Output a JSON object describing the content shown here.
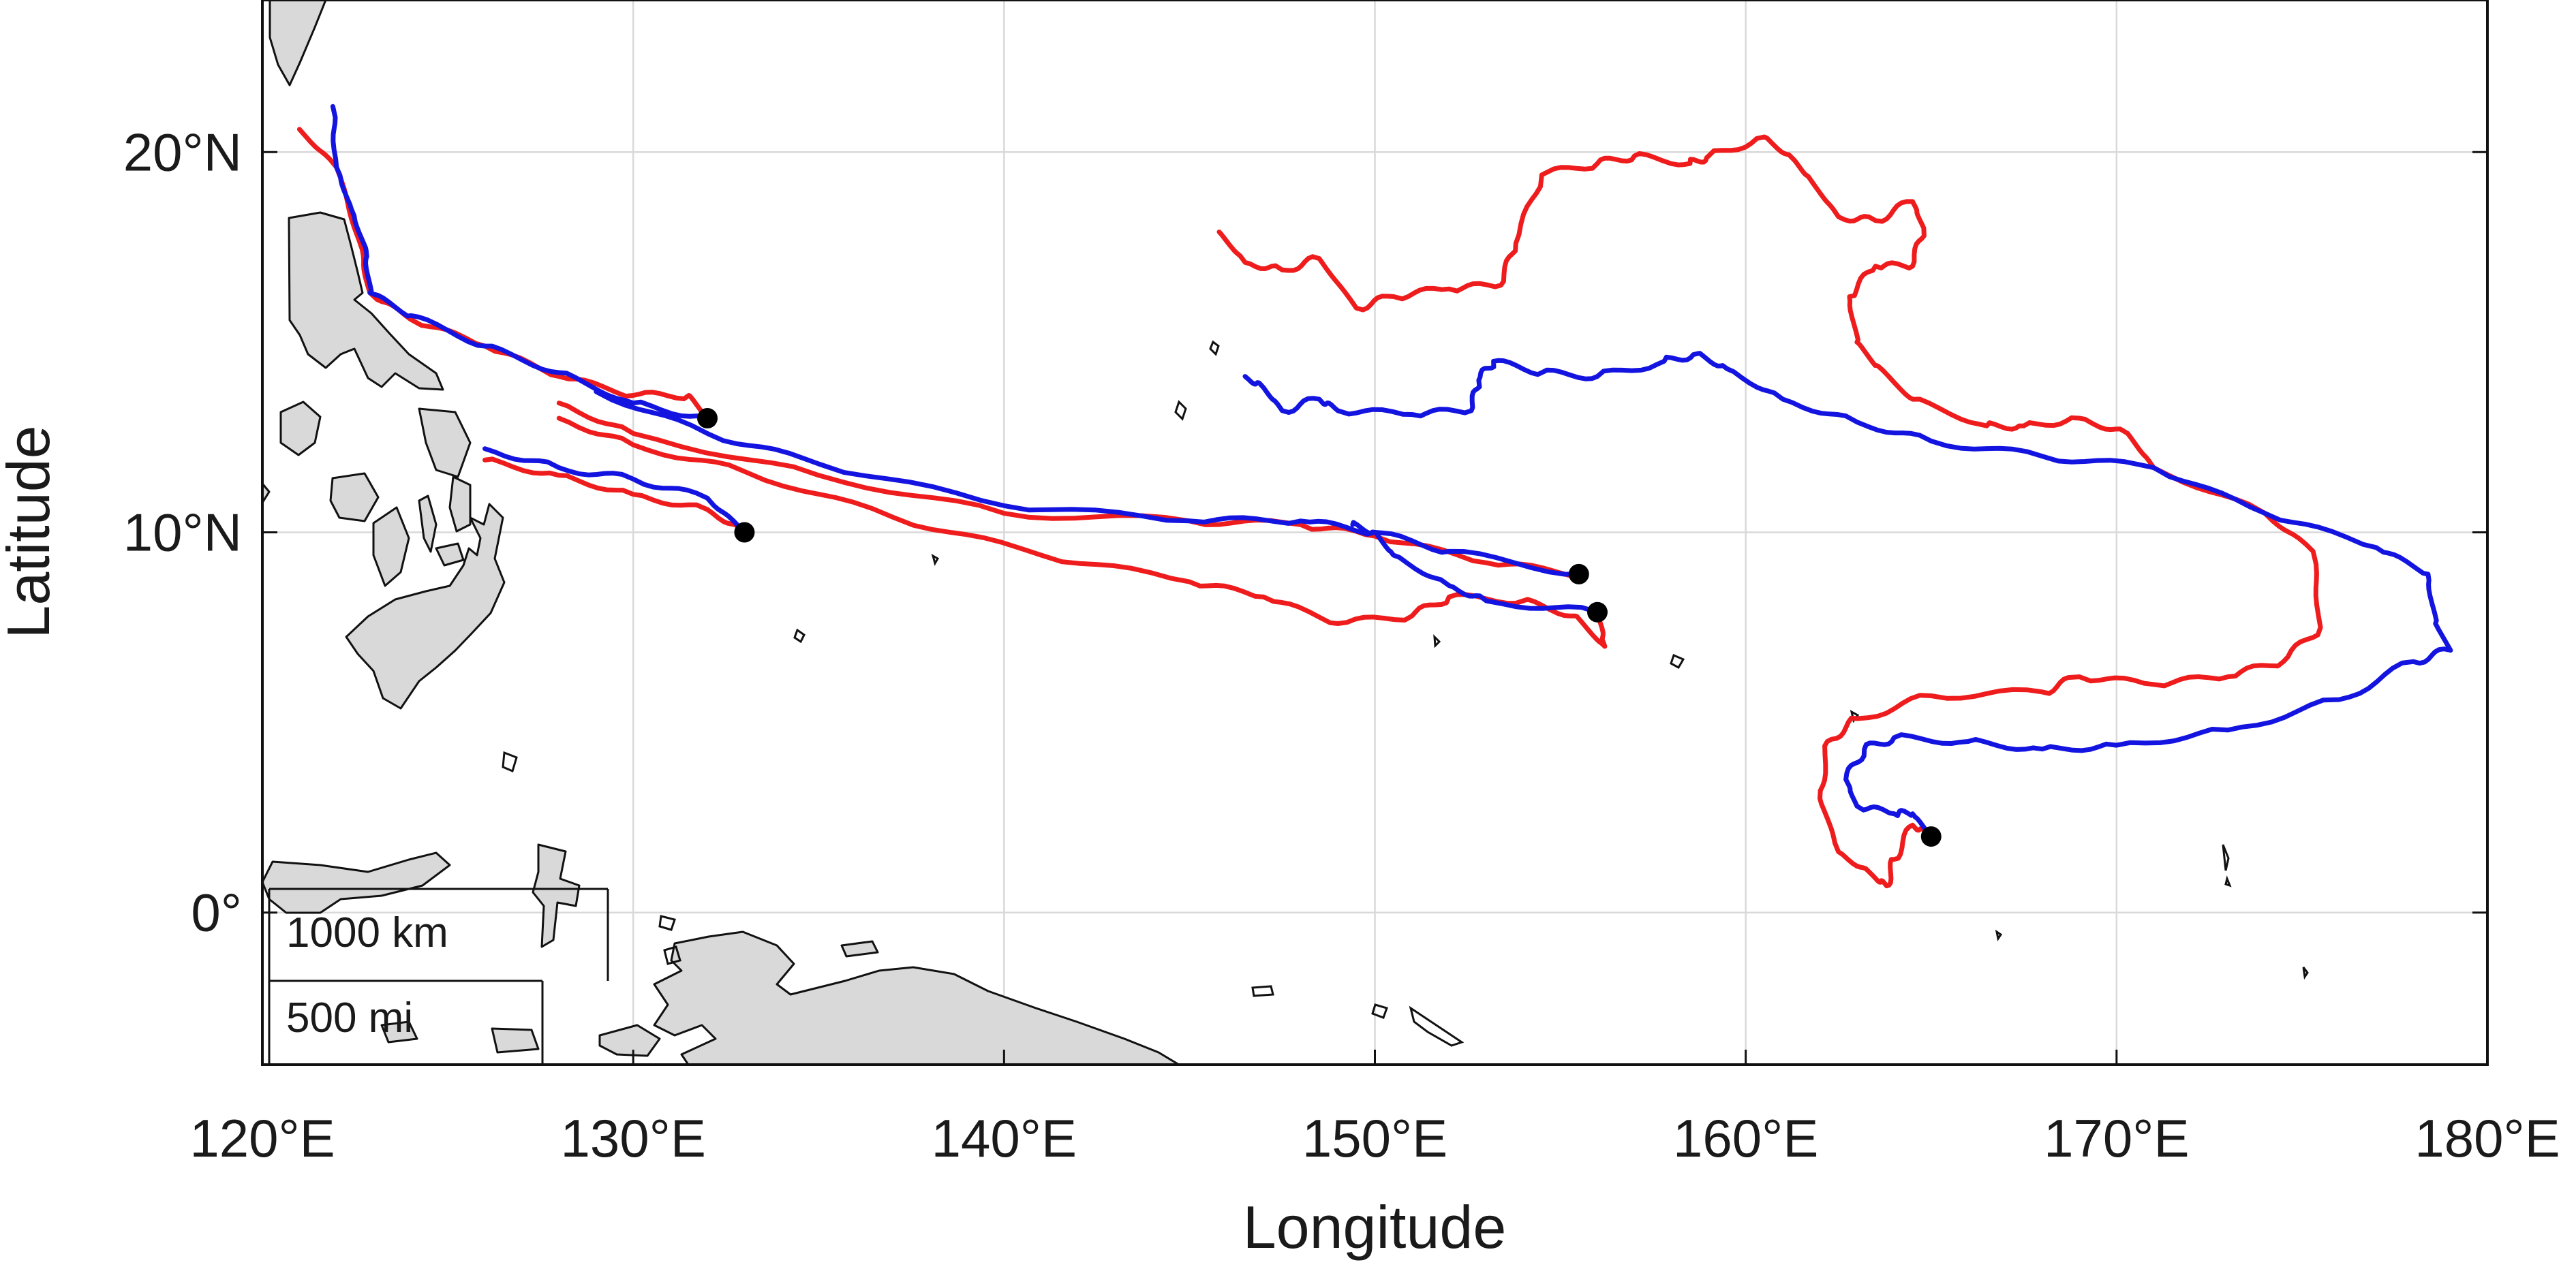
{
  "map": {
    "lon_range": [
      120,
      180
    ],
    "lat_range": [
      -4,
      24
    ],
    "x_label": "Longitude",
    "y_label": "Latitude",
    "x_ticks": [
      {
        "value": 120,
        "label": "120°E"
      },
      {
        "value": 130,
        "label": "130°E"
      },
      {
        "value": 140,
        "label": "140°E"
      },
      {
        "value": 150,
        "label": "150°E"
      },
      {
        "value": 160,
        "label": "160°E"
      },
      {
        "value": 170,
        "label": "170°E"
      },
      {
        "value": 180,
        "label": "180°E"
      }
    ],
    "y_ticks": [
      {
        "value": 0,
        "label": "0°"
      },
      {
        "value": 10,
        "label": "10°N"
      },
      {
        "value": 20,
        "label": "20°N"
      }
    ],
    "grid": true,
    "land_color": "#d9d9d9",
    "scale_bar": {
      "km_label": "1000 km",
      "mi_label": "500 mi"
    }
  },
  "chart_data": {
    "type": "line",
    "xlabel": "Longitude",
    "ylabel": "Latitude",
    "xlim": [
      120,
      180
    ],
    "ylim": [
      -4,
      24
    ],
    "series_colors": {
      "red": "#ee1c1c",
      "blue": "#1414e0"
    },
    "release_points": [
      {
        "lon": 132.0,
        "lat": 13.0
      },
      {
        "lon": 133.0,
        "lat": 10.0
      },
      {
        "lon": 155.5,
        "lat": 8.9
      },
      {
        "lon": 156.0,
        "lat": 7.9
      },
      {
        "lon": 165.0,
        "lat": 2.0
      }
    ],
    "tracks": [
      {
        "color": "red",
        "points": [
          [
            132.0,
            13.0
          ],
          [
            131.5,
            13.6
          ],
          [
            130.0,
            13.6
          ],
          [
            128.0,
            14.1
          ],
          [
            126.0,
            14.9
          ],
          [
            124.0,
            15.6
          ],
          [
            122.9,
            16.3
          ],
          [
            122.6,
            17.7
          ],
          [
            122.0,
            19.6
          ],
          [
            121.0,
            20.6
          ]
        ]
      },
      {
        "color": "blue",
        "points": [
          [
            132.0,
            13.0
          ],
          [
            130.0,
            13.4
          ],
          [
            128.0,
            14.2
          ],
          [
            126.0,
            14.9
          ],
          [
            124.0,
            15.7
          ],
          [
            122.9,
            16.3
          ],
          [
            122.8,
            17.4
          ],
          [
            122.4,
            18.5
          ],
          [
            122.0,
            19.6
          ],
          [
            121.9,
            21.2
          ]
        ]
      },
      {
        "color": "red",
        "points": [
          [
            133.0,
            10.0
          ],
          [
            132.0,
            10.6
          ],
          [
            130.0,
            11.0
          ],
          [
            128.0,
            11.5
          ],
          [
            126.0,
            11.9
          ]
        ]
      },
      {
        "color": "blue",
        "points": [
          [
            133.0,
            10.0
          ],
          [
            132.0,
            10.9
          ],
          [
            130.0,
            11.4
          ],
          [
            128.0,
            11.7
          ],
          [
            126.0,
            12.2
          ]
        ]
      },
      {
        "color": "red",
        "points": [
          [
            155.5,
            8.9
          ],
          [
            153.0,
            9.2
          ],
          [
            150.0,
            9.9
          ],
          [
            148.0,
            10.2
          ],
          [
            145.0,
            10.3
          ],
          [
            140.0,
            10.5
          ],
          [
            135.0,
            11.5
          ],
          [
            130.0,
            12.6
          ],
          [
            128.0,
            13.4
          ]
        ]
      },
      {
        "color": "blue",
        "points": [
          [
            155.5,
            8.9
          ],
          [
            152.0,
            9.5
          ],
          [
            150.0,
            10.0
          ],
          [
            148.0,
            10.3
          ],
          [
            145.0,
            10.3
          ],
          [
            140.0,
            10.7
          ],
          [
            135.0,
            11.8
          ],
          [
            132.0,
            12.6
          ],
          [
            129.0,
            13.7
          ]
        ]
      },
      {
        "color": "red",
        "points": [
          [
            156.0,
            7.9
          ],
          [
            156.2,
            7.0
          ],
          [
            155.4,
            7.8
          ],
          [
            154.0,
            8.2
          ],
          [
            152.0,
            8.3
          ],
          [
            151.0,
            7.8
          ],
          [
            149.0,
            7.6
          ],
          [
            147.0,
            8.3
          ],
          [
            145.0,
            8.7
          ],
          [
            141.0,
            9.4
          ],
          [
            137.0,
            10.4
          ],
          [
            133.0,
            11.6
          ],
          [
            130.0,
            12.3
          ],
          [
            128.0,
            13.0
          ]
        ]
      },
      {
        "color": "blue",
        "points": [
          [
            156.0,
            7.9
          ],
          [
            153.0,
            8.2
          ],
          [
            152.0,
            8.6
          ],
          [
            150.5,
            9.4
          ],
          [
            150.0,
            10.0
          ],
          [
            149.4,
            10.2
          ]
        ]
      },
      {
        "color": "red",
        "points": [
          [
            165.0,
            2.0
          ],
          [
            164.5,
            2.3
          ],
          [
            164.0,
            1.4
          ],
          [
            163.8,
            0.7
          ],
          [
            163.4,
            1.0
          ],
          [
            162.5,
            1.6
          ],
          [
            162.0,
            3.0
          ],
          [
            162.2,
            4.5
          ],
          [
            163.0,
            5.1
          ],
          [
            165.0,
            5.7
          ],
          [
            168.0,
            5.8
          ],
          [
            169.0,
            6.2
          ],
          [
            171.0,
            6.0
          ],
          [
            173.0,
            6.2
          ],
          [
            174.5,
            6.6
          ],
          [
            175.5,
            7.5
          ],
          [
            175.3,
            9.5
          ],
          [
            174.0,
            10.5
          ],
          [
            171.0,
            11.7
          ],
          [
            170.3,
            12.6
          ],
          [
            169.0,
            13.0
          ],
          [
            167.5,
            12.8
          ],
          [
            166.5,
            12.8
          ],
          [
            164.5,
            13.5
          ],
          [
            163.5,
            14.4
          ],
          [
            163.0,
            15.0
          ],
          [
            162.8,
            16.2
          ],
          [
            163.5,
            17.0
          ],
          [
            164.5,
            17.0
          ],
          [
            164.8,
            18.0
          ],
          [
            164.5,
            18.7
          ],
          [
            163.5,
            18.2
          ],
          [
            162.5,
            18.3
          ],
          [
            161.8,
            19.2
          ],
          [
            161.3,
            19.8
          ],
          [
            160.5,
            20.4
          ],
          [
            159.0,
            19.9
          ],
          [
            158.5,
            19.7
          ],
          [
            157.0,
            19.9
          ],
          [
            156.0,
            19.7
          ],
          [
            154.5,
            19.4
          ],
          [
            153.8,
            17.6
          ],
          [
            153.4,
            16.5
          ],
          [
            152.0,
            16.4
          ],
          [
            150.5,
            16.2
          ],
          [
            149.5,
            15.9
          ],
          [
            148.5,
            17.2
          ],
          [
            147.5,
            16.9
          ],
          [
            146.5,
            17.1
          ],
          [
            145.8,
            17.9
          ]
        ]
      },
      {
        "color": "blue",
        "points": [
          [
            165.0,
            2.0
          ],
          [
            164.5,
            2.6
          ],
          [
            164.0,
            2.6
          ],
          [
            163.0,
            2.8
          ],
          [
            162.7,
            3.5
          ],
          [
            163.2,
            4.3
          ],
          [
            164.0,
            4.6
          ],
          [
            166.0,
            4.5
          ],
          [
            168.0,
            4.3
          ],
          [
            170.0,
            4.4
          ],
          [
            173.0,
            4.8
          ],
          [
            176.0,
            5.6
          ],
          [
            178.0,
            6.6
          ],
          [
            179.0,
            6.9
          ],
          [
            178.6,
            7.6
          ],
          [
            178.4,
            8.9
          ],
          [
            177.0,
            9.6
          ],
          [
            174.0,
            10.5
          ],
          [
            171.0,
            11.7
          ],
          [
            168.0,
            12.0
          ],
          [
            165.0,
            12.4
          ],
          [
            163.0,
            12.9
          ],
          [
            161.0,
            13.5
          ],
          [
            159.5,
            14.3
          ],
          [
            158.7,
            14.7
          ],
          [
            157.8,
            14.5
          ],
          [
            156.0,
            14.1
          ],
          [
            154.5,
            14.2
          ],
          [
            153.2,
            14.5
          ],
          [
            152.8,
            14.0
          ],
          [
            152.6,
            13.2
          ],
          [
            151.0,
            13.1
          ],
          [
            149.0,
            13.2
          ],
          [
            148.5,
            13.5
          ],
          [
            147.5,
            13.2
          ],
          [
            147.0,
            13.8
          ],
          [
            146.5,
            14.1
          ]
        ]
      }
    ]
  }
}
